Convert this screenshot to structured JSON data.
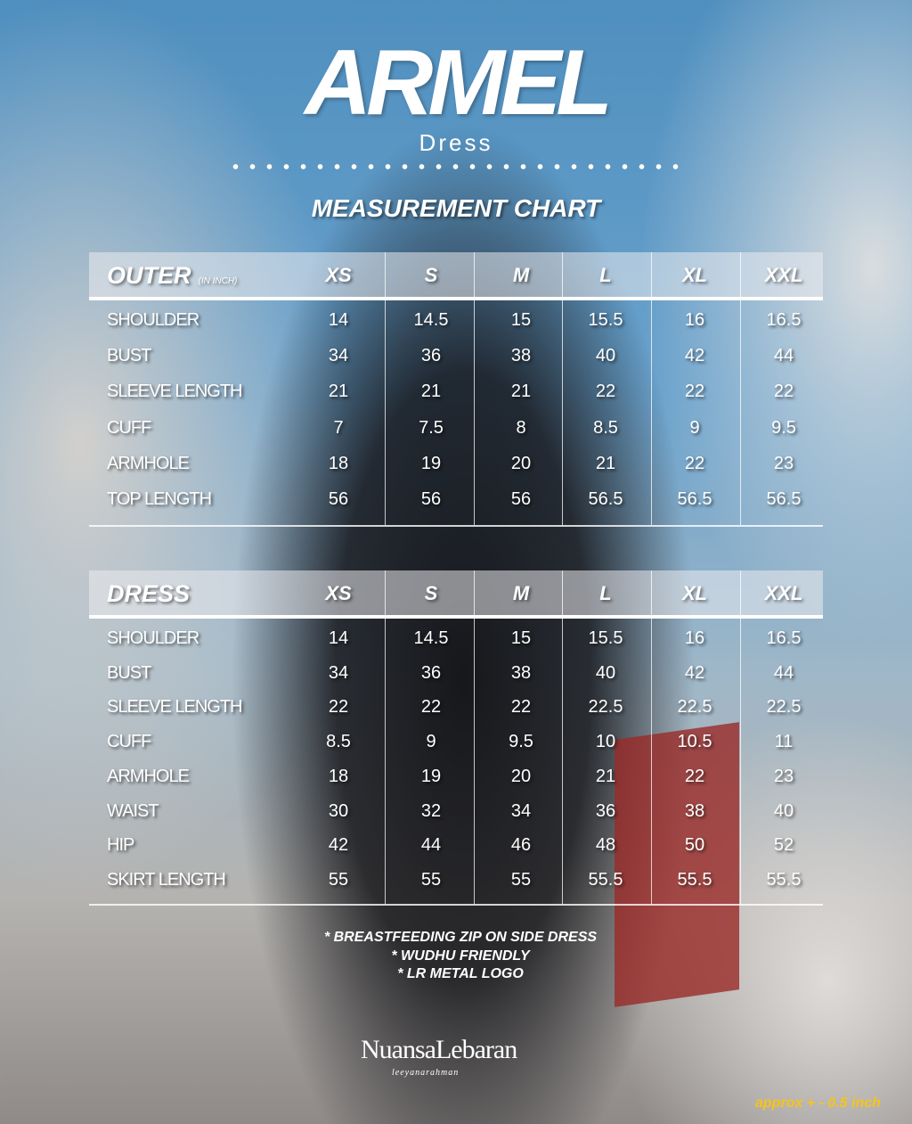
{
  "header": {
    "title": "ARMEL",
    "subtitle": "Dress",
    "chart_title": "MEASUREMENT CHART"
  },
  "sizes": [
    "XS",
    "S",
    "M",
    "L",
    "XL",
    "XXL"
  ],
  "outer": {
    "name": "OUTER",
    "unit": "(IN INCH)",
    "rows": [
      {
        "label": "SHOULDER",
        "values": [
          "14",
          "14.5",
          "15",
          "15.5",
          "16",
          "16.5"
        ]
      },
      {
        "label": "BUST",
        "values": [
          "34",
          "36",
          "38",
          "40",
          "42",
          "44"
        ]
      },
      {
        "label": "SLEEVE LENGTH",
        "values": [
          "21",
          "21",
          "21",
          "22",
          "22",
          "22"
        ]
      },
      {
        "label": "CUFF",
        "values": [
          "7",
          "7.5",
          "8",
          "8.5",
          "9",
          "9.5"
        ]
      },
      {
        "label": "ARMHOLE",
        "values": [
          "18",
          "19",
          "20",
          "21",
          "22",
          "23"
        ]
      },
      {
        "label": "TOP LENGTH",
        "values": [
          "56",
          "56",
          "56",
          "56.5",
          "56.5",
          "56.5"
        ]
      }
    ]
  },
  "dress": {
    "name": "DRESS",
    "rows": [
      {
        "label": "SHOULDER",
        "values": [
          "14",
          "14.5",
          "15",
          "15.5",
          "16",
          "16.5"
        ]
      },
      {
        "label": "BUST",
        "values": [
          "34",
          "36",
          "38",
          "40",
          "42",
          "44"
        ]
      },
      {
        "label": "SLEEVE LENGTH",
        "values": [
          "22",
          "22",
          "22",
          "22.5",
          "22.5",
          "22.5"
        ]
      },
      {
        "label": "CUFF",
        "values": [
          "8.5",
          "9",
          "9.5",
          "10",
          "10.5",
          "11"
        ]
      },
      {
        "label": "ARMHOLE",
        "values": [
          "18",
          "19",
          "20",
          "21",
          "22",
          "23"
        ]
      },
      {
        "label": "WAIST",
        "values": [
          "30",
          "32",
          "34",
          "36",
          "38",
          "40"
        ]
      },
      {
        "label": "HIP",
        "values": [
          "42",
          "44",
          "46",
          "48",
          "50",
          "52"
        ]
      },
      {
        "label": "SKIRT LENGTH",
        "values": [
          "55",
          "55",
          "55",
          "55.5",
          "55.5",
          "55.5"
        ]
      }
    ]
  },
  "notes": [
    "* BREASTFEEDING ZIP ON SIDE DRESS",
    "* WUDHU FRIENDLY",
    "* LR METAL LOGO"
  ],
  "brand": {
    "logo": "NuansaLebaran",
    "logo_sub": "leeyanarahman"
  },
  "approx_note": "approx + - 0.5 inch",
  "colors": {
    "approx_note": "#f5c518",
    "text": "#ffffff"
  }
}
